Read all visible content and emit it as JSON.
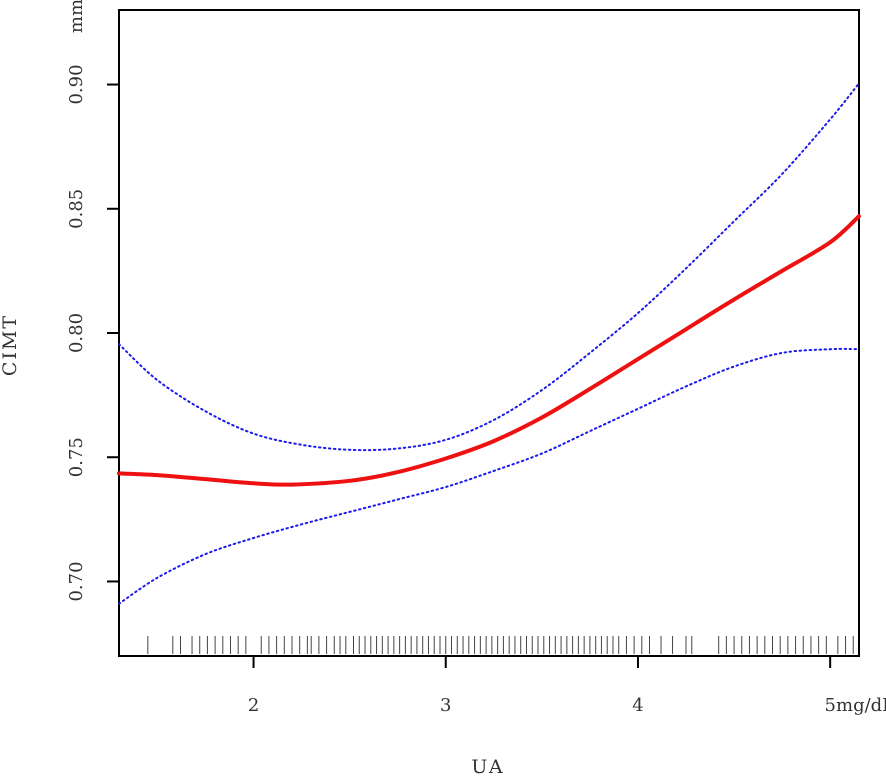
{
  "chart_data": {
    "type": "line",
    "xlabel": "UA",
    "ylabel": "CIMT",
    "x_unit": "mg/dL",
    "y_unit": "mm",
    "xlim": [
      1.3,
      5.15
    ],
    "ylim": [
      0.67,
      0.93
    ],
    "xticks": [
      2,
      3,
      4,
      5
    ],
    "yticks": [
      0.7,
      0.75,
      0.8,
      0.85,
      0.9
    ],
    "ytick_labels": [
      "0.70",
      "0.75",
      "0.80",
      "0.85",
      "0.90"
    ],
    "colors": {
      "fit": "#ee1111",
      "ci": "#1a1aee",
      "frame": "#000000",
      "rug": "#444444"
    },
    "series": [
      {
        "style": "solid",
        "x": [
          1.3,
          1.5,
          1.75,
          2.0,
          2.2,
          2.5,
          2.75,
          3.0,
          3.25,
          3.5,
          3.75,
          4.0,
          4.25,
          4.5,
          4.75,
          5.0,
          5.15
        ],
        "y": [
          0.7435,
          0.7428,
          0.7412,
          0.7395,
          0.739,
          0.7405,
          0.744,
          0.7495,
          0.7565,
          0.766,
          0.7775,
          0.7895,
          0.8015,
          0.8135,
          0.825,
          0.8365,
          0.847
        ]
      },
      {
        "style": "dotted",
        "x": [
          1.3,
          1.5,
          1.75,
          2.0,
          2.25,
          2.5,
          2.75,
          3.0,
          3.25,
          3.5,
          3.75,
          4.0,
          4.25,
          4.5,
          4.75,
          5.0,
          5.15
        ],
        "y": [
          0.7955,
          0.781,
          0.7685,
          0.7595,
          0.755,
          0.753,
          0.7535,
          0.757,
          0.765,
          0.777,
          0.792,
          0.808,
          0.826,
          0.845,
          0.864,
          0.886,
          0.9005
        ]
      },
      {
        "style": "dotted",
        "x": [
          1.3,
          1.5,
          1.75,
          2.0,
          2.25,
          2.5,
          2.75,
          3.0,
          3.25,
          3.5,
          3.75,
          4.0,
          4.25,
          4.5,
          4.75,
          5.0,
          5.15
        ],
        "y": [
          0.691,
          0.7015,
          0.711,
          0.7175,
          0.723,
          0.728,
          0.733,
          0.738,
          0.7445,
          0.7515,
          0.7605,
          0.7695,
          0.7785,
          0.7865,
          0.792,
          0.7935,
          0.7935
        ]
      }
    ],
    "rug": [
      1.45,
      1.58,
      1.62,
      1.68,
      1.72,
      1.76,
      1.8,
      1.84,
      1.88,
      1.92,
      1.96,
      2.04,
      2.08,
      2.12,
      2.16,
      2.2,
      2.24,
      2.28,
      2.3,
      2.34,
      2.38,
      2.42,
      2.45,
      2.48,
      2.52,
      2.55,
      2.58,
      2.61,
      2.64,
      2.67,
      2.7,
      2.73,
      2.76,
      2.79,
      2.82,
      2.85,
      2.88,
      2.91,
      2.94,
      2.97,
      3.0,
      3.03,
      3.06,
      3.09,
      3.12,
      3.15,
      3.18,
      3.21,
      3.24,
      3.27,
      3.3,
      3.33,
      3.36,
      3.39,
      3.42,
      3.45,
      3.48,
      3.51,
      3.54,
      3.57,
      3.6,
      3.63,
      3.66,
      3.69,
      3.72,
      3.75,
      3.78,
      3.81,
      3.84,
      3.87,
      3.9,
      3.94,
      3.98,
      4.02,
      4.06,
      4.12,
      4.18,
      4.25,
      4.28,
      4.42,
      4.46,
      4.5,
      4.54,
      4.58,
      4.62,
      4.66,
      4.7,
      4.74,
      4.78,
      4.82,
      4.86,
      4.9,
      4.94,
      4.98,
      5.04,
      5.08,
      5.12
    ],
    "grid": false,
    "legend": "none"
  }
}
